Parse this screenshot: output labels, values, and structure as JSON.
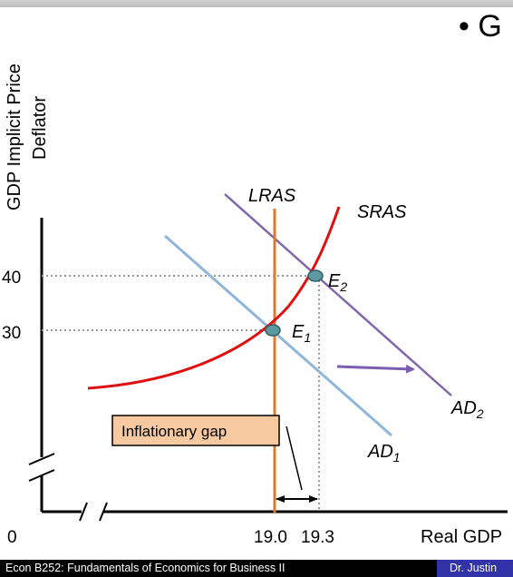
{
  "slide": {
    "bullet_text": "• G"
  },
  "diagram": {
    "y_axis_label_line1": "GDP Implicit Price",
    "y_axis_label_line2": "Deflator",
    "x_axis_label": "Real GDP",
    "origin_label": "0",
    "y_ticks": [
      "40",
      "30"
    ],
    "x_ticks": [
      "19.0",
      "19.3"
    ],
    "curves": {
      "lras": "LRAS",
      "sras": "SRAS",
      "ad1": "AD",
      "ad1_sub": "1",
      "ad2": "AD",
      "ad2_sub": "2"
    },
    "points": {
      "e1": "E",
      "e1_sub": "1",
      "e2": "E",
      "e2_sub": "2"
    },
    "gap_label": "Inflationary gap",
    "colors": {
      "lras": "#e07a2c",
      "sras": "#e01010",
      "ad1": "#8fb6d8",
      "ad2": "#8068a8",
      "arrow": "#7a5fb0",
      "point_fill": "#5e98a0",
      "gap_box": "#f6c9a0"
    }
  },
  "footer": {
    "course": "Econ B252: Fundamentals of Economics for Business II",
    "author": "Dr. Justin"
  }
}
